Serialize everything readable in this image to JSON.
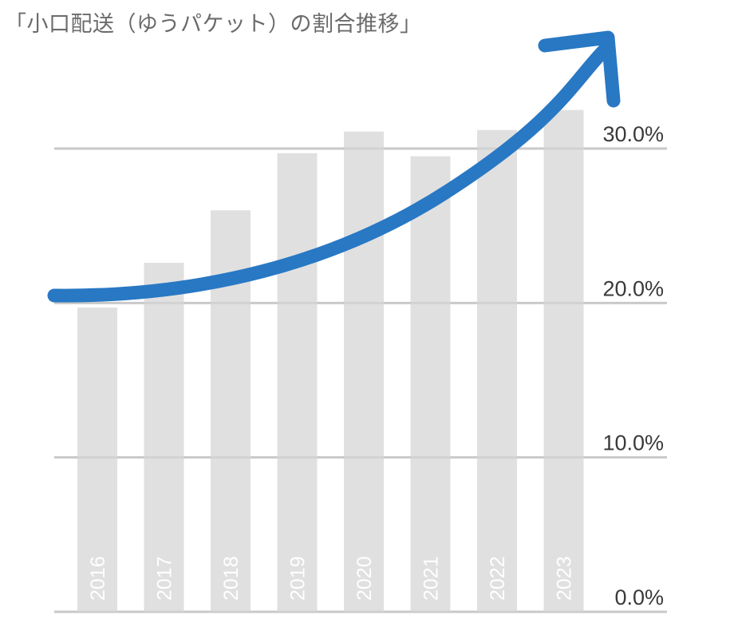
{
  "title": "「小口配送（ゆうパケット）の割合推移」",
  "chart_data": {
    "type": "bar",
    "title": "「小口配送（ゆうパケット）の割合推移」",
    "categories": [
      "2016",
      "2017",
      "2018",
      "2019",
      "2020",
      "2021",
      "2022",
      "2023"
    ],
    "values": [
      19.7,
      22.6,
      26.0,
      29.7,
      31.1,
      29.5,
      31.2,
      32.5
    ],
    "xlabel": "",
    "ylabel": "",
    "ylim": [
      0,
      30
    ],
    "yticks": [
      "0.0%",
      "10.0%",
      "20.0%",
      "30.0%"
    ],
    "ytick_values": [
      0,
      10,
      20,
      30
    ],
    "y_axis_position": "right",
    "grid": true,
    "legend": null,
    "annotations": [
      "upward trend arrow (blue curved arrow rising from left to top-right)"
    ],
    "colors": {
      "bars": "#e0e0e0",
      "gridline": "#d6d6d6",
      "arrow": "#2878c4",
      "tick_label": "#3a3a3a",
      "title": "#6b6b6b",
      "category_label": "#ffffff"
    }
  }
}
